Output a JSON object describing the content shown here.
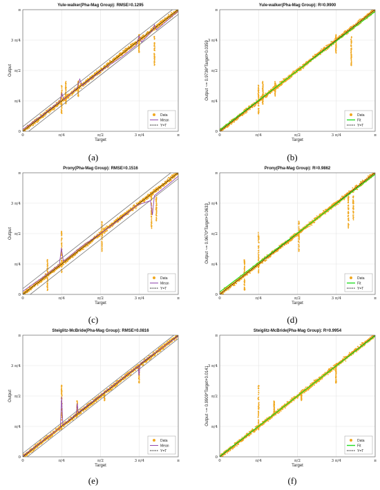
{
  "figure": {
    "panel_labels": [
      "(a)",
      "(b)",
      "(c)",
      "(d)",
      "(e)",
      "(f)"
    ]
  },
  "chart_data": [
    {
      "type": "scatter",
      "panel": "(a)",
      "title": "Yule-walker(Pha-Mag Group): RMSE=0.1295",
      "xlabel": "Target",
      "ylabel": "Output",
      "xticks": [
        "0",
        "π/4",
        "π/2",
        "3 π/4",
        "π"
      ],
      "yticks": [
        "0",
        "π/4",
        "π/2",
        "3 π/4",
        "π"
      ],
      "xlim": [
        0,
        3.1416
      ],
      "ylim": [
        0,
        3.1416
      ],
      "grid": true,
      "legend": {
        "position": "bottom-right",
        "entries": [
          "Data",
          "Mean",
          "Y=T"
        ]
      },
      "colors": {
        "data": "#f0a820",
        "mean": "#8e44ad",
        "ref": "#111111",
        "band": "#777777"
      },
      "band_offset": 0.12,
      "spikes": [
        {
          "x": 0.785,
          "min": 0.45,
          "max": 1.2
        },
        {
          "x": 0.87,
          "min": 0.7,
          "max": 1.3
        },
        {
          "x": 1.12,
          "min": 0.9,
          "max": 1.3
        },
        {
          "x": 2.35,
          "min": 2.0,
          "max": 2.5
        },
        {
          "x": 2.66,
          "min": 1.7,
          "max": 2.45
        }
      ],
      "series": [
        {
          "name": "Mean",
          "x": [
            0,
            0.4,
            0.75,
            0.79,
            0.83,
            1.1,
            1.15,
            1.2,
            1.6,
            2.0,
            2.3,
            2.35,
            2.4,
            2.62,
            2.66,
            2.7,
            3.0,
            3.14
          ],
          "y": [
            0.05,
            0.42,
            0.78,
            0.98,
            0.82,
            1.12,
            1.35,
            1.18,
            1.58,
            1.92,
            2.22,
            2.46,
            2.3,
            2.6,
            2.75,
            2.62,
            2.95,
            3.1
          ]
        }
      ]
    },
    {
      "type": "scatter",
      "panel": "(b)",
      "title": "Yule-walker(Pha-Mag Group): R=0.9900",
      "xlabel": "Target",
      "ylabel": "Output ~= 0.9736*Target+0.0359",
      "xticks": [
        "0",
        "π/4",
        "π/2",
        "3 π/4",
        "π"
      ],
      "yticks": [
        "0",
        "π/4",
        "π/2",
        "3 π/4",
        "π"
      ],
      "xlim": [
        0,
        3.1416
      ],
      "ylim": [
        0,
        3.1416
      ],
      "grid": true,
      "legend": {
        "position": "bottom-right",
        "entries": [
          "Data",
          "Fit",
          "Y=T"
        ]
      },
      "colors": {
        "data": "#f0a820",
        "fit": "#22dd22",
        "ref": "#111111"
      },
      "spikes": [
        {
          "x": 0.785,
          "min": 0.45,
          "max": 1.2
        },
        {
          "x": 0.87,
          "min": 0.7,
          "max": 1.3
        },
        {
          "x": 1.12,
          "min": 0.9,
          "max": 1.3
        },
        {
          "x": 2.35,
          "min": 2.0,
          "max": 2.5
        },
        {
          "x": 2.66,
          "min": 1.7,
          "max": 2.45
        }
      ],
      "series": [
        {
          "name": "Fit",
          "slope": 0.9736,
          "intercept": 0.0359
        }
      ]
    },
    {
      "type": "scatter",
      "panel": "(c)",
      "title": "Prony(Pha-Mag Group): RMSE=0.1516",
      "xlabel": "Target",
      "ylabel": "Output",
      "xticks": [
        "0",
        "π/4",
        "π/2",
        "3 π/4",
        "π"
      ],
      "yticks": [
        "0",
        "π/4",
        "π/2",
        "3 π/4",
        "π"
      ],
      "xlim": [
        0,
        3.1416
      ],
      "ylim": [
        0,
        3.1416
      ],
      "grid": true,
      "legend": {
        "position": "bottom-right",
        "entries": [
          "Data",
          "Mean",
          "Y=T"
        ]
      },
      "colors": {
        "data": "#f0a820",
        "mean": "#8e44ad",
        "ref": "#111111",
        "band": "#777777"
      },
      "band_offset": 0.15,
      "spikes": [
        {
          "x": 0.5,
          "min": 0.1,
          "max": 0.9
        },
        {
          "x": 0.785,
          "min": 0.55,
          "max": 1.65
        },
        {
          "x": 1.6,
          "min": 1.1,
          "max": 1.9
        },
        {
          "x": 2.6,
          "min": 1.7,
          "max": 2.6
        },
        {
          "x": 2.7,
          "min": 1.9,
          "max": 2.55
        }
      ],
      "series": [
        {
          "name": "Mean",
          "x": [
            0,
            0.4,
            0.74,
            0.78,
            0.82,
            1.2,
            1.6,
            2.0,
            2.3,
            2.58,
            2.62,
            2.66,
            3.0,
            3.14
          ],
          "y": [
            0.08,
            0.44,
            0.78,
            1.2,
            0.86,
            1.25,
            1.6,
            1.98,
            2.3,
            2.42,
            2.05,
            2.55,
            2.9,
            3.05
          ]
        }
      ]
    },
    {
      "type": "scatter",
      "panel": "(d)",
      "title": "Prony(Pha-Mag Group): R=0.9862",
      "xlabel": "Target",
      "ylabel": "Output ~= 0.9670*Target+0.0633",
      "xticks": [
        "0",
        "π/4",
        "π/2",
        "3 π/4",
        "π"
      ],
      "yticks": [
        "0",
        "π/4",
        "π/2",
        "3 π/4",
        "π"
      ],
      "xlim": [
        0,
        3.1416
      ],
      "ylim": [
        0,
        3.1416
      ],
      "grid": true,
      "legend": {
        "position": "bottom-right",
        "entries": [
          "Data",
          "Fit",
          "Y=T"
        ]
      },
      "colors": {
        "data": "#f0a820",
        "fit": "#22dd22",
        "ref": "#111111"
      },
      "spikes": [
        {
          "x": 0.5,
          "min": 0.1,
          "max": 0.9
        },
        {
          "x": 0.785,
          "min": 0.55,
          "max": 1.65
        },
        {
          "x": 1.6,
          "min": 1.1,
          "max": 1.9
        },
        {
          "x": 2.6,
          "min": 1.7,
          "max": 2.6
        },
        {
          "x": 2.7,
          "min": 1.9,
          "max": 2.55
        }
      ],
      "series": [
        {
          "name": "Fit",
          "slope": 0.967,
          "intercept": 0.0633
        }
      ]
    },
    {
      "type": "scatter",
      "panel": "(e)",
      "title": "Steiglitz-McBride(Pha-Mag Group): RMSE=0.0816",
      "xlabel": "Target",
      "ylabel": "Output",
      "xticks": [
        "0",
        "π/4",
        "π/2",
        "3 π/4",
        "π"
      ],
      "yticks": [
        "0",
        "π/4",
        "π/2",
        "3 π/4",
        "π"
      ],
      "xlim": [
        0,
        3.1416
      ],
      "ylim": [
        0,
        3.1416
      ],
      "grid": true,
      "legend": {
        "position": "bottom-right",
        "entries": [
          "Data",
          "Mean",
          "Y=T"
        ]
      },
      "colors": {
        "data": "#f0a820",
        "mean": "#8e44ad",
        "ref": "#111111",
        "band": "#777777"
      },
      "band_offset": 0.09,
      "spikes": [
        {
          "x": 0.785,
          "min": 0.7,
          "max": 1.85
        },
        {
          "x": 1.1,
          "min": 1.05,
          "max": 1.45
        },
        {
          "x": 1.65,
          "min": 1.45,
          "max": 1.7
        },
        {
          "x": 2.35,
          "min": 1.9,
          "max": 2.4
        }
      ],
      "series": [
        {
          "name": "Mean",
          "x": [
            0,
            0.76,
            0.785,
            0.81,
            1.08,
            1.1,
            1.12,
            2.33,
            2.35,
            2.37,
            3.14
          ],
          "y": [
            0.02,
            0.76,
            1.55,
            0.82,
            1.1,
            1.38,
            1.14,
            2.34,
            2.1,
            2.4,
            3.12
          ]
        }
      ]
    },
    {
      "type": "scatter",
      "panel": "(f)",
      "title": "Steiglitz-McBride(Pha-Mag Group): R=0.9954",
      "xlabel": "Target",
      "ylabel": "Output ~= 0.9909*Target+0.0141",
      "xticks": [
        "0",
        "π/4",
        "π/2",
        "3 π/4",
        "π"
      ],
      "yticks": [
        "0",
        "π/4",
        "π/2",
        "3 π/4",
        "π"
      ],
      "xlim": [
        0,
        3.1416
      ],
      "ylim": [
        0,
        3.1416
      ],
      "grid": true,
      "legend": {
        "position": "bottom-right",
        "entries": [
          "Data",
          "Fit",
          "Y=T"
        ]
      },
      "colors": {
        "data": "#f0a820",
        "fit": "#22dd22",
        "ref": "#111111"
      },
      "spikes": [
        {
          "x": 0.785,
          "min": 0.7,
          "max": 1.85
        },
        {
          "x": 1.1,
          "min": 1.05,
          "max": 1.45
        },
        {
          "x": 1.65,
          "min": 1.45,
          "max": 1.7
        },
        {
          "x": 2.35,
          "min": 1.9,
          "max": 2.4
        }
      ],
      "series": [
        {
          "name": "Fit",
          "slope": 0.9909,
          "intercept": 0.0141
        }
      ]
    }
  ]
}
